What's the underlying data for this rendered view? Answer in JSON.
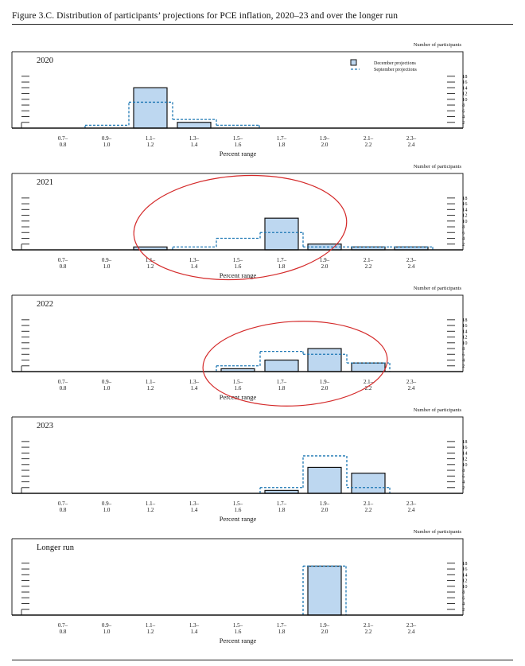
{
  "figure_title": "Figure 3.C. Distribution of participants’ projections for PCE inflation, 2020–23 and over the longer run",
  "colors": {
    "december_fill": "#bdd7f0",
    "september_line": "#1f78b4",
    "annotation": "#d42a2a"
  },
  "chart_data": [
    {
      "type": "bar",
      "panel": "2020",
      "categories": [
        [
          "0.7–",
          "0.8"
        ],
        [
          "0.9–",
          "1.0"
        ],
        [
          "1.1–",
          "1.2"
        ],
        [
          "1.3–",
          "1.4"
        ],
        [
          "1.5–",
          "1.6"
        ],
        [
          "1.7–",
          "1.8"
        ],
        [
          "1.9–",
          "2.0"
        ],
        [
          "2.1–",
          "2.2"
        ],
        [
          "2.3–",
          "2.4"
        ]
      ],
      "series": [
        {
          "name": "December projections",
          "values": [
            0,
            0,
            14,
            2,
            0,
            0,
            0,
            0,
            0
          ]
        },
        {
          "name": "September projections",
          "values": [
            0,
            1,
            9,
            3,
            1,
            0,
            0,
            0,
            0
          ]
        }
      ],
      "xlabel": "Percent range",
      "ylabel": "Number of participants",
      "ylim": [
        0,
        20
      ],
      "yticks": [
        2,
        4,
        6,
        8,
        10,
        12,
        14,
        16,
        18
      ],
      "legend": "top-right"
    },
    {
      "type": "bar",
      "panel": "2021",
      "categories": [
        [
          "0.7–",
          "0.8"
        ],
        [
          "0.9–",
          "1.0"
        ],
        [
          "1.1–",
          "1.2"
        ],
        [
          "1.3–",
          "1.4"
        ],
        [
          "1.5–",
          "1.6"
        ],
        [
          "1.7–",
          "1.8"
        ],
        [
          "1.9–",
          "2.0"
        ],
        [
          "2.1–",
          "2.2"
        ],
        [
          "2.3–",
          "2.4"
        ]
      ],
      "series": [
        {
          "name": "December projections",
          "values": [
            0,
            0,
            1,
            0,
            0,
            11,
            2,
            1,
            1
          ]
        },
        {
          "name": "September projections",
          "values": [
            0,
            0,
            0,
            1,
            4,
            6,
            1,
            1,
            1
          ]
        }
      ],
      "xlabel": "Percent range",
      "ylabel": "Number of participants",
      "ylim": [
        0,
        20
      ],
      "yticks": [
        2,
        4,
        6,
        8,
        10,
        12,
        14,
        16,
        18
      ]
    },
    {
      "type": "bar",
      "panel": "2022",
      "categories": [
        [
          "0.7–",
          "0.8"
        ],
        [
          "0.9–",
          "1.0"
        ],
        [
          "1.1–",
          "1.2"
        ],
        [
          "1.3–",
          "1.4"
        ],
        [
          "1.5–",
          "1.6"
        ],
        [
          "1.7–",
          "1.8"
        ],
        [
          "1.9–",
          "2.0"
        ],
        [
          "2.1–",
          "2.2"
        ],
        [
          "2.3–",
          "2.4"
        ]
      ],
      "series": [
        {
          "name": "December projections",
          "values": [
            0,
            0,
            0,
            0,
            1,
            4,
            8,
            3,
            0
          ]
        },
        {
          "name": "September projections",
          "values": [
            0,
            0,
            0,
            0,
            2,
            7,
            6,
            3,
            0
          ]
        }
      ],
      "xlabel": "Percent range",
      "ylabel": "Number of participants",
      "ylim": [
        0,
        20
      ],
      "yticks": [
        2,
        4,
        6,
        8,
        10,
        12,
        14,
        16,
        18
      ]
    },
    {
      "type": "bar",
      "panel": "2023",
      "categories": [
        [
          "0.7–",
          "0.8"
        ],
        [
          "0.9–",
          "1.0"
        ],
        [
          "1.1–",
          "1.2"
        ],
        [
          "1.3–",
          "1.4"
        ],
        [
          "1.5–",
          "1.6"
        ],
        [
          "1.7–",
          "1.8"
        ],
        [
          "1.9–",
          "2.0"
        ],
        [
          "2.1–",
          "2.2"
        ],
        [
          "2.3–",
          "2.4"
        ]
      ],
      "series": [
        {
          "name": "December projections",
          "values": [
            0,
            0,
            0,
            0,
            0,
            1,
            9,
            7,
            0
          ]
        },
        {
          "name": "September projections",
          "values": [
            0,
            0,
            0,
            0,
            0,
            2,
            13,
            2,
            0
          ]
        }
      ],
      "xlabel": "Percent range",
      "ylabel": "Number of participants",
      "ylim": [
        0,
        20
      ],
      "yticks": [
        2,
        4,
        6,
        8,
        10,
        12,
        14,
        16,
        18
      ]
    },
    {
      "type": "bar",
      "panel": "Longer run",
      "categories": [
        [
          "0.7–",
          "0.8"
        ],
        [
          "0.9–",
          "1.0"
        ],
        [
          "1.1–",
          "1.2"
        ],
        [
          "1.3–",
          "1.4"
        ],
        [
          "1.5–",
          "1.6"
        ],
        [
          "1.7–",
          "1.8"
        ],
        [
          "1.9–",
          "2.0"
        ],
        [
          "2.1–",
          "2.2"
        ],
        [
          "2.3–",
          "2.4"
        ]
      ],
      "series": [
        {
          "name": "December projections",
          "values": [
            0,
            0,
            0,
            0,
            0,
            0,
            17,
            0,
            0
          ]
        },
        {
          "name": "September projections",
          "values": [
            0,
            0,
            0,
            0,
            0,
            0,
            17,
            0,
            0
          ]
        }
      ],
      "xlabel": "Percent range",
      "ylabel": "Number of participants",
      "ylim": [
        0,
        20
      ],
      "yticks": [
        2,
        4,
        6,
        8,
        10,
        12,
        14,
        16,
        18
      ]
    }
  ]
}
